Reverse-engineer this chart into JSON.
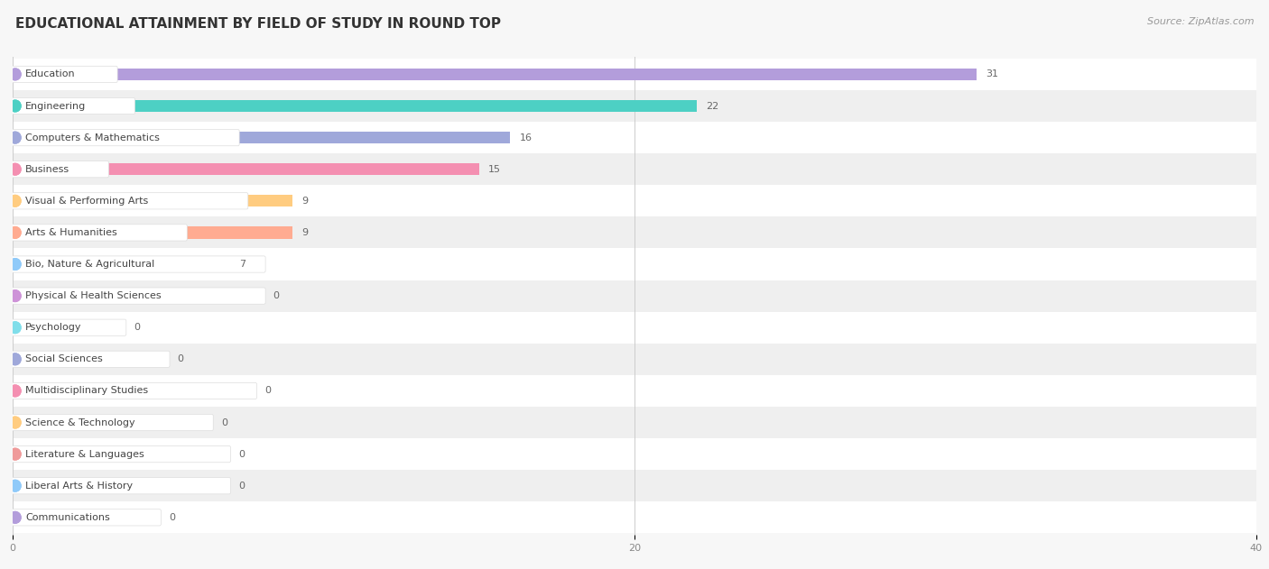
{
  "title": "EDUCATIONAL ATTAINMENT BY FIELD OF STUDY IN ROUND TOP",
  "source": "Source: ZipAtlas.com",
  "categories": [
    "Education",
    "Engineering",
    "Computers & Mathematics",
    "Business",
    "Visual & Performing Arts",
    "Arts & Humanities",
    "Bio, Nature & Agricultural",
    "Physical & Health Sciences",
    "Psychology",
    "Social Sciences",
    "Multidisciplinary Studies",
    "Science & Technology",
    "Literature & Languages",
    "Liberal Arts & History",
    "Communications"
  ],
  "values": [
    31,
    22,
    16,
    15,
    9,
    9,
    7,
    0,
    0,
    0,
    0,
    0,
    0,
    0,
    0
  ],
  "bar_colors": [
    "#b39ddb",
    "#4dd0c4",
    "#9fa8da",
    "#f48fb1",
    "#ffcc80",
    "#ffab91",
    "#90caf9",
    "#ce93d8",
    "#80deea",
    "#9fa8da",
    "#f48fb1",
    "#ffcc80",
    "#ef9a9a",
    "#90caf9",
    "#b39ddb"
  ],
  "xlim": [
    0,
    40
  ],
  "xticks": [
    0,
    20,
    40
  ],
  "background_color": "#f7f7f7",
  "row_bg_odd": "#ffffff",
  "row_bg_even": "#efefef",
  "title_fontsize": 11,
  "source_fontsize": 8,
  "label_fontsize": 8,
  "value_fontsize": 8
}
